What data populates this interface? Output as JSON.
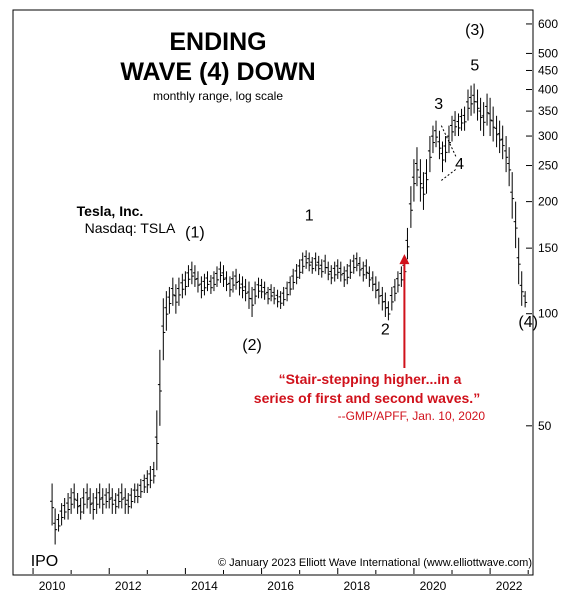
{
  "chart_data": {
    "type": "ohlc",
    "title_line1": "ENDING",
    "title_line2": "WAVE (4) DOWN",
    "subtitle": "monthly range, log scale",
    "company": "Tesla, Inc.",
    "exchange": "Nasdaq: TSLA",
    "y_scale": "log",
    "ylim": [
      20,
      650
    ],
    "xlim": [
      2009.5,
      2023.1
    ],
    "x_ticks": [
      2010,
      2012,
      2014,
      2016,
      2018,
      2020,
      2022
    ],
    "y_ticks": [
      50,
      100,
      150,
      200,
      250,
      300,
      350,
      400,
      450,
      500,
      600
    ],
    "series": [
      {
        "values": [
          {
            "t": 2010.5,
            "h": 35,
            "l": 27
          },
          {
            "t": 2010.58,
            "h": 30,
            "l": 24
          },
          {
            "t": 2010.67,
            "h": 29,
            "l": 26
          },
          {
            "t": 2010.75,
            "h": 31,
            "l": 27
          },
          {
            "t": 2010.83,
            "h": 32,
            "l": 28
          },
          {
            "t": 2010.92,
            "h": 33,
            "l": 28
          },
          {
            "t": 2011.0,
            "h": 34,
            "l": 29
          },
          {
            "t": 2011.08,
            "h": 35,
            "l": 30
          },
          {
            "t": 2011.17,
            "h": 33,
            "l": 29
          },
          {
            "t": 2011.25,
            "h": 32,
            "l": 28
          },
          {
            "t": 2011.33,
            "h": 34,
            "l": 29
          },
          {
            "t": 2011.42,
            "h": 35,
            "l": 30
          },
          {
            "t": 2011.5,
            "h": 34,
            "l": 29
          },
          {
            "t": 2011.58,
            "h": 33,
            "l": 28
          },
          {
            "t": 2011.67,
            "h": 34,
            "l": 29
          },
          {
            "t": 2011.75,
            "h": 35,
            "l": 30
          },
          {
            "t": 2011.83,
            "h": 34,
            "l": 29
          },
          {
            "t": 2011.92,
            "h": 34,
            "l": 30
          },
          {
            "t": 2012.0,
            "h": 35,
            "l": 30
          },
          {
            "t": 2012.08,
            "h": 34,
            "l": 29
          },
          {
            "t": 2012.17,
            "h": 33,
            "l": 29
          },
          {
            "t": 2012.25,
            "h": 34,
            "l": 30
          },
          {
            "t": 2012.33,
            "h": 35,
            "l": 30
          },
          {
            "t": 2012.42,
            "h": 34,
            "l": 29
          },
          {
            "t": 2012.5,
            "h": 33,
            "l": 29
          },
          {
            "t": 2012.58,
            "h": 34,
            "l": 30
          },
          {
            "t": 2012.67,
            "h": 35,
            "l": 31
          },
          {
            "t": 2012.75,
            "h": 35,
            "l": 31
          },
          {
            "t": 2012.83,
            "h": 36,
            "l": 32
          },
          {
            "t": 2012.92,
            "h": 37,
            "l": 33
          },
          {
            "t": 2013.0,
            "h": 38,
            "l": 33
          },
          {
            "t": 2013.08,
            "h": 39,
            "l": 34
          },
          {
            "t": 2013.17,
            "h": 40,
            "l": 35
          },
          {
            "t": 2013.25,
            "h": 55,
            "l": 38
          },
          {
            "t": 2013.33,
            "h": 80,
            "l": 50
          },
          {
            "t": 2013.42,
            "h": 110,
            "l": 75
          },
          {
            "t": 2013.5,
            "h": 115,
            "l": 90
          },
          {
            "t": 2013.58,
            "h": 118,
            "l": 100
          },
          {
            "t": 2013.67,
            "h": 125,
            "l": 105
          },
          {
            "t": 2013.75,
            "h": 120,
            "l": 100
          },
          {
            "t": 2013.83,
            "h": 125,
            "l": 105
          },
          {
            "t": 2013.92,
            "h": 128,
            "l": 110
          },
          {
            "t": 2014.0,
            "h": 130,
            "l": 112
          },
          {
            "t": 2014.08,
            "h": 135,
            "l": 118
          },
          {
            "t": 2014.17,
            "h": 138,
            "l": 120
          },
          {
            "t": 2014.25,
            "h": 135,
            "l": 118
          },
          {
            "t": 2014.33,
            "h": 130,
            "l": 114
          },
          {
            "t": 2014.42,
            "h": 126,
            "l": 110
          },
          {
            "t": 2014.5,
            "h": 128,
            "l": 112
          },
          {
            "t": 2014.58,
            "h": 130,
            "l": 115
          },
          {
            "t": 2014.67,
            "h": 127,
            "l": 113
          },
          {
            "t": 2014.75,
            "h": 130,
            "l": 115
          },
          {
            "t": 2014.83,
            "h": 134,
            "l": 118
          },
          {
            "t": 2014.92,
            "h": 138,
            "l": 121
          },
          {
            "t": 2015.0,
            "h": 135,
            "l": 118
          },
          {
            "t": 2015.08,
            "h": 130,
            "l": 115
          },
          {
            "t": 2015.17,
            "h": 126,
            "l": 111
          },
          {
            "t": 2015.25,
            "h": 130,
            "l": 114
          },
          {
            "t": 2015.33,
            "h": 132,
            "l": 116
          },
          {
            "t": 2015.42,
            "h": 128,
            "l": 112
          },
          {
            "t": 2015.5,
            "h": 126,
            "l": 110
          },
          {
            "t": 2015.58,
            "h": 124,
            "l": 108
          },
          {
            "t": 2015.67,
            "h": 122,
            "l": 103
          },
          {
            "t": 2015.75,
            "h": 118,
            "l": 98
          },
          {
            "t": 2015.83,
            "h": 122,
            "l": 106
          },
          {
            "t": 2015.92,
            "h": 125,
            "l": 110
          },
          {
            "t": 2016.0,
            "h": 124,
            "l": 110
          },
          {
            "t": 2016.08,
            "h": 122,
            "l": 109
          },
          {
            "t": 2016.17,
            "h": 118,
            "l": 106
          },
          {
            "t": 2016.25,
            "h": 120,
            "l": 108
          },
          {
            "t": 2016.33,
            "h": 118,
            "l": 106
          },
          {
            "t": 2016.42,
            "h": 116,
            "l": 104
          },
          {
            "t": 2016.5,
            "h": 115,
            "l": 103
          },
          {
            "t": 2016.58,
            "h": 118,
            "l": 105
          },
          {
            "t": 2016.67,
            "h": 122,
            "l": 108
          },
          {
            "t": 2016.75,
            "h": 126,
            "l": 112
          },
          {
            "t": 2016.83,
            "h": 132,
            "l": 116
          },
          {
            "t": 2016.92,
            "h": 136,
            "l": 120
          },
          {
            "t": 2017.0,
            "h": 140,
            "l": 124
          },
          {
            "t": 2017.08,
            "h": 146,
            "l": 128
          },
          {
            "t": 2017.17,
            "h": 148,
            "l": 132
          },
          {
            "t": 2017.25,
            "h": 146,
            "l": 130
          },
          {
            "t": 2017.33,
            "h": 142,
            "l": 128
          },
          {
            "t": 2017.42,
            "h": 146,
            "l": 130
          },
          {
            "t": 2017.5,
            "h": 143,
            "l": 127
          },
          {
            "t": 2017.58,
            "h": 140,
            "l": 125
          },
          {
            "t": 2017.67,
            "h": 144,
            "l": 128
          },
          {
            "t": 2017.75,
            "h": 138,
            "l": 123
          },
          {
            "t": 2017.83,
            "h": 135,
            "l": 120
          },
          {
            "t": 2017.92,
            "h": 138,
            "l": 122
          },
          {
            "t": 2018.0,
            "h": 140,
            "l": 124
          },
          {
            "t": 2018.08,
            "h": 138,
            "l": 122
          },
          {
            "t": 2018.17,
            "h": 134,
            "l": 118
          },
          {
            "t": 2018.25,
            "h": 136,
            "l": 120
          },
          {
            "t": 2018.33,
            "h": 140,
            "l": 124
          },
          {
            "t": 2018.42,
            "h": 144,
            "l": 128
          },
          {
            "t": 2018.5,
            "h": 146,
            "l": 130
          },
          {
            "t": 2018.58,
            "h": 142,
            "l": 126
          },
          {
            "t": 2018.67,
            "h": 138,
            "l": 122
          },
          {
            "t": 2018.75,
            "h": 140,
            "l": 124
          },
          {
            "t": 2018.83,
            "h": 134,
            "l": 118
          },
          {
            "t": 2018.92,
            "h": 130,
            "l": 115
          },
          {
            "t": 2019.0,
            "h": 126,
            "l": 110
          },
          {
            "t": 2019.08,
            "h": 122,
            "l": 106
          },
          {
            "t": 2019.17,
            "h": 118,
            "l": 102
          },
          {
            "t": 2019.25,
            "h": 114,
            "l": 98
          },
          {
            "t": 2019.33,
            "h": 108,
            "l": 96
          },
          {
            "t": 2019.42,
            "h": 118,
            "l": 102
          },
          {
            "t": 2019.5,
            "h": 124,
            "l": 108
          },
          {
            "t": 2019.58,
            "h": 130,
            "l": 114
          },
          {
            "t": 2019.67,
            "h": 134,
            "l": 118
          },
          {
            "t": 2019.75,
            "h": 140,
            "l": 125
          },
          {
            "t": 2019.83,
            "h": 170,
            "l": 140
          },
          {
            "t": 2019.92,
            "h": 220,
            "l": 170
          },
          {
            "t": 2020.0,
            "h": 260,
            "l": 200
          },
          {
            "t": 2020.08,
            "h": 280,
            "l": 220
          },
          {
            "t": 2020.17,
            "h": 260,
            "l": 200
          },
          {
            "t": 2020.25,
            "h": 240,
            "l": 190
          },
          {
            "t": 2020.33,
            "h": 260,
            "l": 210
          },
          {
            "t": 2020.42,
            "h": 300,
            "l": 240
          },
          {
            "t": 2020.5,
            "h": 320,
            "l": 270
          },
          {
            "t": 2020.58,
            "h": 330,
            "l": 280
          },
          {
            "t": 2020.67,
            "h": 310,
            "l": 260
          },
          {
            "t": 2020.75,
            "h": 290,
            "l": 240
          },
          {
            "t": 2020.83,
            "h": 300,
            "l": 255
          },
          {
            "t": 2020.92,
            "h": 320,
            "l": 270
          },
          {
            "t": 2021.0,
            "h": 340,
            "l": 290
          },
          {
            "t": 2021.08,
            "h": 350,
            "l": 300
          },
          {
            "t": 2021.17,
            "h": 345,
            "l": 300
          },
          {
            "t": 2021.25,
            "h": 355,
            "l": 310
          },
          {
            "t": 2021.33,
            "h": 360,
            "l": 310
          },
          {
            "t": 2021.42,
            "h": 400,
            "l": 330
          },
          {
            "t": 2021.5,
            "h": 410,
            "l": 340
          },
          {
            "t": 2021.58,
            "h": 415,
            "l": 345
          },
          {
            "t": 2021.67,
            "h": 400,
            "l": 330
          },
          {
            "t": 2021.75,
            "h": 380,
            "l": 310
          },
          {
            "t": 2021.83,
            "h": 370,
            "l": 300
          },
          {
            "t": 2021.92,
            "h": 390,
            "l": 320
          },
          {
            "t": 2022.0,
            "h": 380,
            "l": 300
          },
          {
            "t": 2022.08,
            "h": 360,
            "l": 290
          },
          {
            "t": 2022.17,
            "h": 340,
            "l": 280
          },
          {
            "t": 2022.25,
            "h": 330,
            "l": 270
          },
          {
            "t": 2022.33,
            "h": 320,
            "l": 260
          },
          {
            "t": 2022.42,
            "h": 300,
            "l": 240
          },
          {
            "t": 2022.5,
            "h": 280,
            "l": 220
          },
          {
            "t": 2022.58,
            "h": 240,
            "l": 180
          },
          {
            "t": 2022.67,
            "h": 200,
            "l": 150
          },
          {
            "t": 2022.75,
            "h": 160,
            "l": 120
          },
          {
            "t": 2022.83,
            "h": 130,
            "l": 105
          },
          {
            "t": 2022.92,
            "h": 115,
            "l": 104
          }
        ]
      }
    ],
    "wave_labels": [
      {
        "text": "(1)",
        "t": 2014.25,
        "v": 160
      },
      {
        "text": "(2)",
        "t": 2015.75,
        "v": 80
      },
      {
        "text": "1",
        "t": 2017.25,
        "v": 178
      },
      {
        "text": "2",
        "t": 2019.25,
        "v": 88
      },
      {
        "text": "3",
        "t": 2020.65,
        "v": 355
      },
      {
        "text": "4",
        "t": 2021.2,
        "v": 245
      },
      {
        "text": "5",
        "t": 2021.6,
        "v": 450
      },
      {
        "text": "(3)",
        "t": 2021.6,
        "v": 560
      },
      {
        "text": "(4)",
        "t": 2023.0,
        "v": 92
      },
      {
        "text": "IPO",
        "t": 2010.3,
        "v": 21
      }
    ],
    "annotation": {
      "quote_line1": "“Stair-stepping higher...in a",
      "quote_line2": "series of first and second waves.”",
      "source": "--GMP/APFF, Jan. 10, 2020",
      "arrow_t": 2019.75,
      "arrow_v": 150
    },
    "copyright": "© January 2023 Elliott Wave International (www.elliottwave.com)"
  }
}
